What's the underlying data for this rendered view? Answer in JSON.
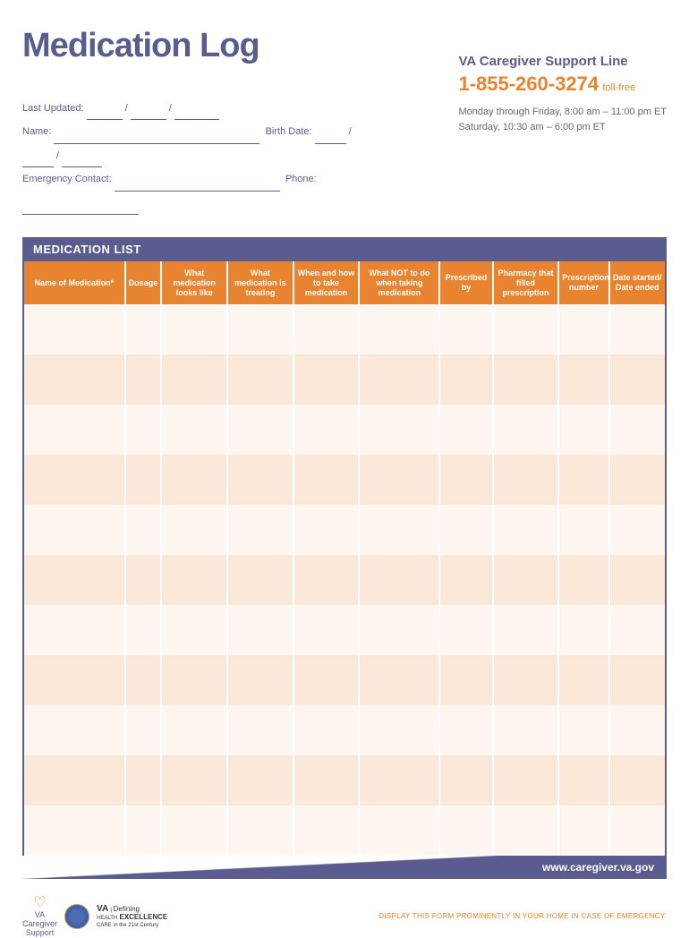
{
  "title": "Medication Log",
  "support": {
    "title": "VA Caregiver Support Line",
    "phone": "1-855-260-3274",
    "toll_free": "toll-free",
    "hours_line1": "Monday through Friday, 8:00 am – 11:00 pm ET",
    "hours_line2": "Saturday, 10:30 am – 6:00 pm ET"
  },
  "fields": {
    "last_updated": "Last Updated:",
    "name": "Name:",
    "birth_date": "Birth Date:",
    "emergency": "Emergency Contact:",
    "phone": "Phone:"
  },
  "section_title": "MEDICATION LIST",
  "columns": [
    {
      "label": "Name of Medication*",
      "width": "110"
    },
    {
      "label": "Dosage",
      "width": "40"
    },
    {
      "label": "What medication looks like",
      "width": "72"
    },
    {
      "label": "What medication is treating",
      "width": "72"
    },
    {
      "label": "When and how to take medication",
      "width": "72"
    },
    {
      "label": "What NOT to do when taking medication",
      "width": "88"
    },
    {
      "label": "Prescribed by",
      "width": "58"
    },
    {
      "label": "Pharmacy that filled prescription",
      "width": "72"
    },
    {
      "label": "Prescription number",
      "width": "55"
    },
    {
      "label": "Date started/ Date ended",
      "width": "61"
    }
  ],
  "row_count": 11,
  "colors": {
    "purple": "#5a5b8f",
    "orange": "#e8832f",
    "row_light": "#fef7f1",
    "row_dark": "#fbe8d8"
  },
  "footer_url": "www.caregiver.va.gov",
  "logos": {
    "caregiver_line1": "VA",
    "caregiver_line2": "Caregiver",
    "caregiver_line3": "Support",
    "va_line1": "VA",
    "va_line2": "Defining",
    "va_line3": "EXCELLENCE",
    "va_line4": "in the 21st Century",
    "va_health": "HEALTH",
    "va_care": "CARE"
  },
  "disclaimer": "DISPLAY THIS FORM PROMINENTLY IN YOUR HOME IN CASE OF EMERGENCY."
}
